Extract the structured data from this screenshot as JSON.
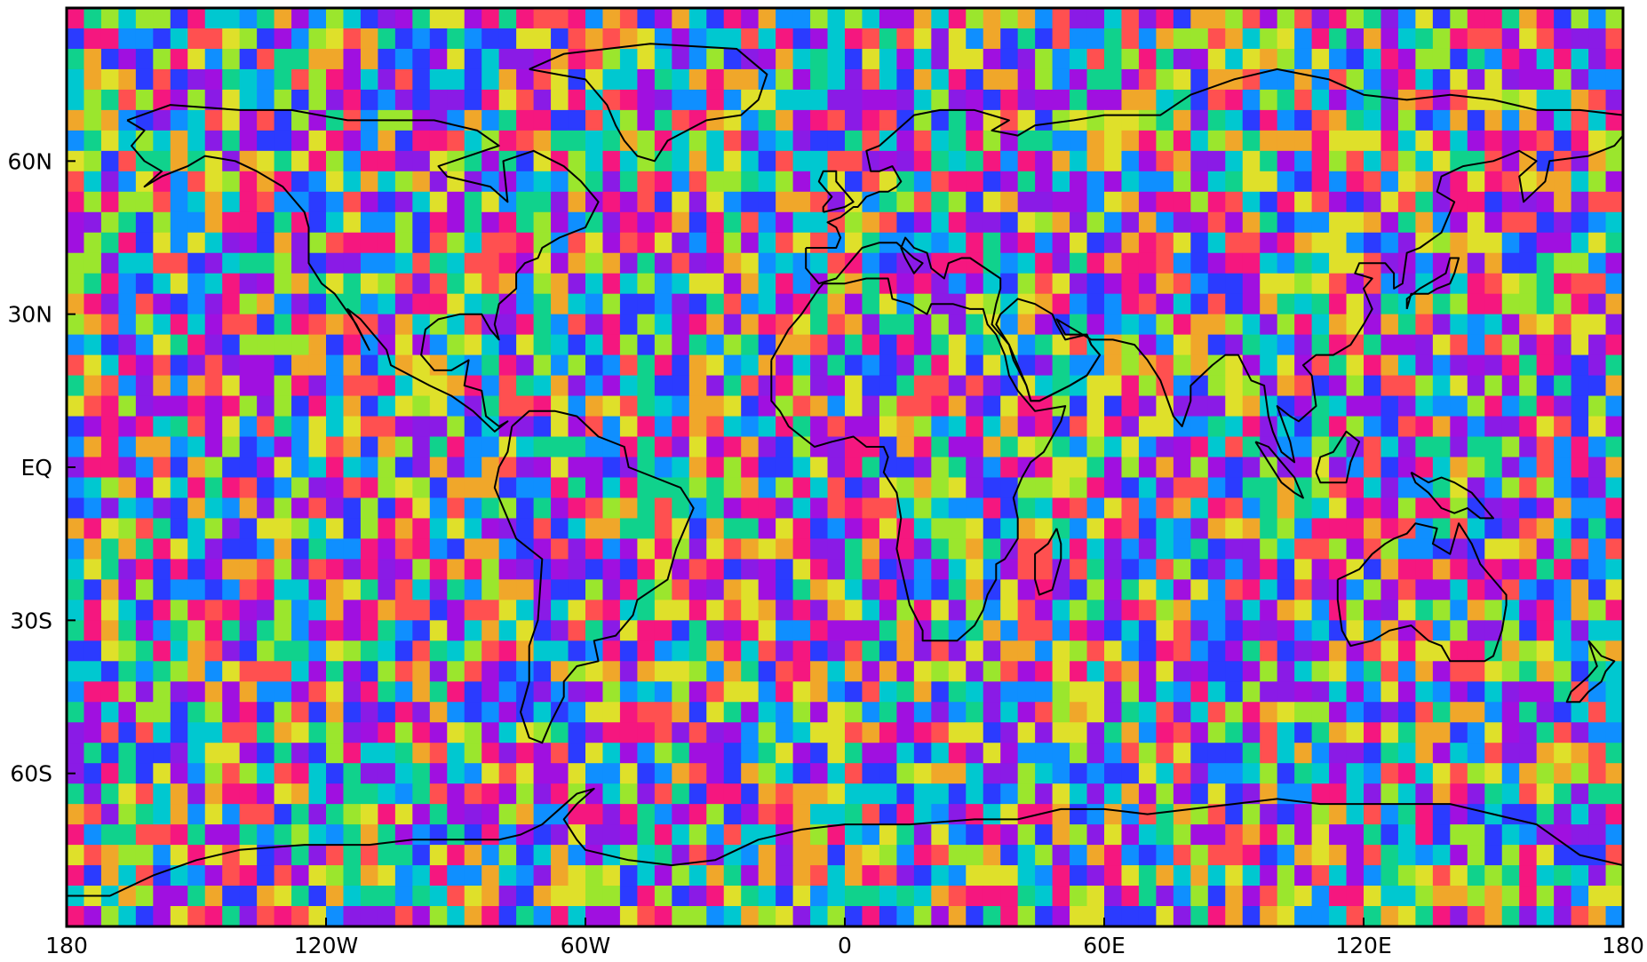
{
  "map": {
    "projection": "equirectangular",
    "lon_range": [
      -180,
      180
    ],
    "lat_range": [
      -90,
      90
    ],
    "grid_cell_degrees": 4,
    "field": "random noise field (no colorbar shown)",
    "coastlines": true
  },
  "colors": {
    "palette": [
      "#8a1be6",
      "#a010e0",
      "#2b3bff",
      "#0f8fff",
      "#00c8d0",
      "#10d28c",
      "#9be62d",
      "#dfe02a",
      "#f0a72a",
      "#ff5050",
      "#f5177f"
    ],
    "missing": "#ffffff",
    "frame": "#000000"
  },
  "axes": {
    "x_ticks": [
      {
        "value": -180,
        "label": "180"
      },
      {
        "value": -120,
        "label": "120W"
      },
      {
        "value": -60,
        "label": "60W"
      },
      {
        "value": 0,
        "label": "0"
      },
      {
        "value": 60,
        "label": "60E"
      },
      {
        "value": 120,
        "label": "120E"
      },
      {
        "value": 180,
        "label": "180"
      }
    ],
    "y_ticks": [
      {
        "value": 60,
        "label": "60N"
      },
      {
        "value": 30,
        "label": "30N"
      },
      {
        "value": 0,
        "label": "EQ"
      },
      {
        "value": -30,
        "label": "30S"
      },
      {
        "value": -60,
        "label": "60S"
      }
    ]
  }
}
